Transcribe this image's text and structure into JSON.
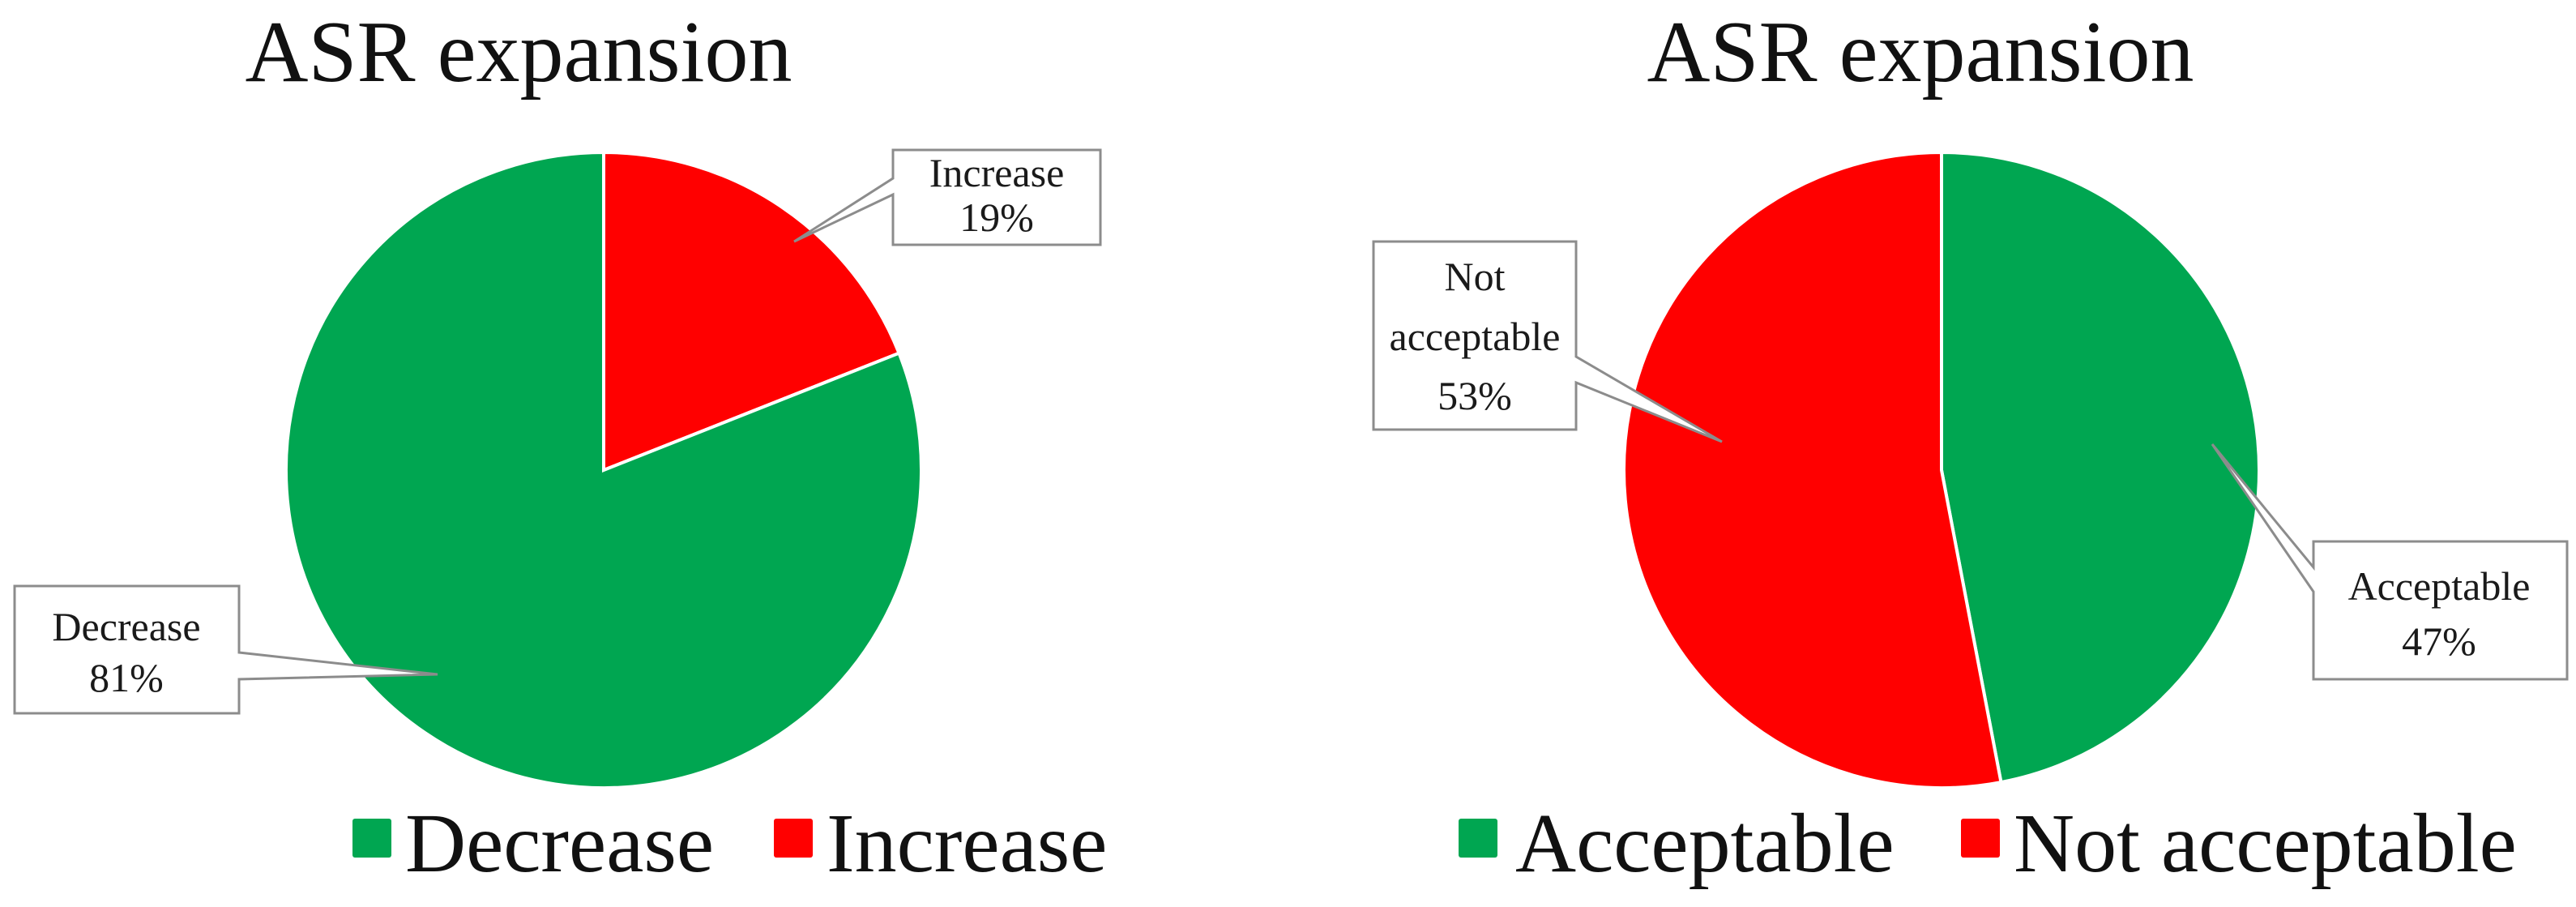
{
  "colors": {
    "green": "#00A651",
    "red": "#FF0000"
  },
  "chart_data": [
    {
      "type": "pie",
      "title": "ASR expansion",
      "slices": [
        {
          "name": "Increase",
          "value": 19,
          "label": "Increase",
          "percent_text": "19%",
          "color": "#FF0000"
        },
        {
          "name": "Decrease",
          "value": 81,
          "label": "Decrease",
          "percent_text": "81%",
          "color": "#00A651"
        }
      ],
      "legend": {
        "placement": "bottom",
        "entries": [
          {
            "name": "Decrease",
            "color": "#00A651"
          },
          {
            "name": "Increase",
            "color": "#FF0000"
          }
        ]
      }
    },
    {
      "type": "pie",
      "title": "ASR expansion",
      "slices": [
        {
          "name": "Acceptable",
          "value": 47,
          "label": "Acceptable",
          "percent_text": "47%",
          "color": "#00A651"
        },
        {
          "name": "Not acceptable",
          "value": 53,
          "label": "Not acceptable",
          "label_lines": [
            "Not",
            "acceptable"
          ],
          "percent_text": "53%",
          "color": "#FF0000"
        }
      ],
      "legend": {
        "placement": "bottom",
        "entries": [
          {
            "name": "Acceptable",
            "color": "#00A651"
          },
          {
            "name": "Not acceptable",
            "color": "#FF0000"
          }
        ]
      }
    }
  ]
}
